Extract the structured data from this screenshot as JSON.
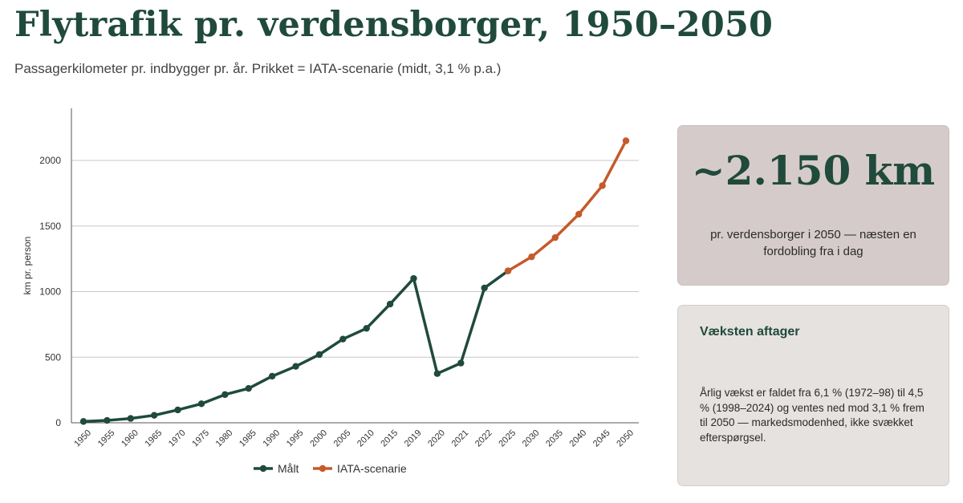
{
  "header": {
    "title": "Flytrafik pr. verdensborger, 1950–2050",
    "subtitle": "Passagerkilometer pr. indbygger pr. år. Prikket = IATA-scenarie (midt, 3,1 % p.a.)"
  },
  "chart_data": {
    "type": "line",
    "ylabel": "km pr. person",
    "xlabel": "",
    "ylim": [
      0,
      2400
    ],
    "yticks": [
      0,
      500,
      1000,
      1500,
      2000
    ],
    "grid": "horizontal",
    "legend_position": "bottom",
    "categories": [
      "1950",
      "1955",
      "1960",
      "1965",
      "1970",
      "1975",
      "1980",
      "1985",
      "1990",
      "1995",
      "2000",
      "2005",
      "2010",
      "2015",
      "2019",
      "2020",
      "2021",
      "2022",
      "2025",
      "2030",
      "2035",
      "2040",
      "2045",
      "2050"
    ],
    "series": [
      {
        "name": "Målt",
        "color": "#1f4a3c",
        "values": [
          10,
          18,
          33,
          57,
          98,
          145,
          215,
          262,
          355,
          430,
          520,
          638,
          720,
          905,
          1100,
          375,
          455,
          1028,
          1158,
          null,
          null,
          null,
          null,
          null
        ]
      },
      {
        "name": "IATA-scenarie",
        "color": "#c65a2a",
        "values": [
          null,
          null,
          null,
          null,
          null,
          null,
          null,
          null,
          null,
          null,
          null,
          null,
          null,
          null,
          null,
          null,
          null,
          null,
          1158,
          1265,
          1412,
          1590,
          1808,
          2150
        ]
      }
    ]
  },
  "stat_card": {
    "value": "~2.150 km",
    "text": "pr. verdensborger i 2050 — næsten en fordobling fra i dag"
  },
  "info_card": {
    "title": "Væksten aftager",
    "text": "Årlig vækst er faldet fra 6,1 % (1972–98) til 4,5 % (1998–2024) og ventes ned mod 3,1 % frem til 2050 — markedsmodenhed, ikke svækket efterspørgsel."
  }
}
